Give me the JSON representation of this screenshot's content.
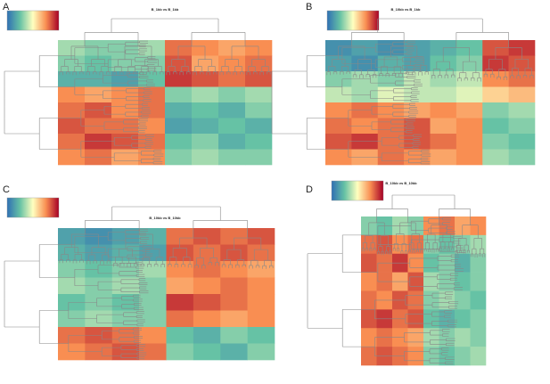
{
  "chart_data": [
    {
      "type": "heatmap",
      "panel": "A",
      "title": "B_1kb vs B_1kb",
      "values": [
        [
          0.35,
          0.3,
          0.3,
          0.35,
          0.8,
          0.75,
          0.7,
          0.75
        ],
        [
          0.3,
          0.25,
          0.3,
          0.3,
          0.85,
          0.7,
          0.75,
          0.8
        ],
        [
          0.2,
          0.2,
          0.15,
          0.25,
          0.9,
          0.85,
          0.8,
          0.85
        ],
        [
          0.75,
          0.7,
          0.75,
          0.8,
          0.3,
          0.35,
          0.3,
          0.35
        ],
        [
          0.8,
          0.85,
          0.75,
          0.8,
          0.2,
          0.25,
          0.2,
          0.3
        ],
        [
          0.85,
          0.8,
          0.8,
          0.75,
          0.15,
          0.2,
          0.25,
          0.2
        ],
        [
          0.8,
          0.9,
          0.85,
          0.8,
          0.25,
          0.3,
          0.2,
          0.25
        ],
        [
          0.75,
          0.8,
          0.7,
          0.75,
          0.3,
          0.35,
          0.3,
          0.3
        ]
      ]
    },
    {
      "type": "heatmap",
      "panel": "B",
      "title": "B_10kb vs B_1kb",
      "values": [
        [
          0.1,
          0.15,
          0.1,
          0.15,
          0.2,
          0.25,
          0.85,
          0.9
        ],
        [
          0.15,
          0.1,
          0.2,
          0.15,
          0.25,
          0.3,
          0.9,
          0.85
        ],
        [
          0.3,
          0.35,
          0.3,
          0.4,
          0.35,
          0.4,
          0.75,
          0.8
        ],
        [
          0.4,
          0.35,
          0.45,
          0.4,
          0.4,
          0.45,
          0.6,
          0.65
        ],
        [
          0.75,
          0.8,
          0.75,
          0.7,
          0.75,
          0.7,
          0.3,
          0.35
        ],
        [
          0.8,
          0.75,
          0.8,
          0.85,
          0.7,
          0.75,
          0.25,
          0.3
        ],
        [
          0.85,
          0.9,
          0.8,
          0.85,
          0.8,
          0.75,
          0.3,
          0.25
        ],
        [
          0.75,
          0.7,
          0.8,
          0.75,
          0.7,
          0.75,
          0.35,
          0.3
        ]
      ]
    },
    {
      "type": "heatmap",
      "panel": "C",
      "title": "B_10kb vs B_10kb",
      "values": [
        [
          0.15,
          0.1,
          0.15,
          0.2,
          0.8,
          0.85,
          0.8,
          0.85
        ],
        [
          0.2,
          0.15,
          0.2,
          0.15,
          0.85,
          0.8,
          0.85,
          0.8
        ],
        [
          0.3,
          0.25,
          0.3,
          0.35,
          0.75,
          0.8,
          0.75,
          0.7
        ],
        [
          0.35,
          0.3,
          0.35,
          0.3,
          0.7,
          0.75,
          0.8,
          0.75
        ],
        [
          0.25,
          0.3,
          0.25,
          0.3,
          0.9,
          0.85,
          0.8,
          0.75
        ],
        [
          0.3,
          0.35,
          0.3,
          0.3,
          0.8,
          0.75,
          0.7,
          0.75
        ],
        [
          0.8,
          0.85,
          0.8,
          0.75,
          0.25,
          0.2,
          0.3,
          0.25
        ],
        [
          0.75,
          0.8,
          0.85,
          0.8,
          0.3,
          0.25,
          0.2,
          0.3
        ]
      ]
    },
    {
      "type": "heatmap",
      "panel": "D",
      "title": "B_10kb vs B_10kb",
      "values": [
        [
          0.3,
          0.25,
          0.35,
          0.3,
          0.75,
          0.8,
          0.7,
          0.75
        ],
        [
          0.8,
          0.85,
          0.75,
          0.8,
          0.3,
          0.25,
          0.3,
          0.35
        ],
        [
          0.85,
          0.8,
          0.9,
          0.75,
          0.25,
          0.3,
          0.2,
          0.3
        ],
        [
          0.75,
          0.8,
          0.7,
          0.85,
          0.35,
          0.3,
          0.25,
          0.3
        ],
        [
          0.8,
          0.75,
          0.85,
          0.8,
          0.3,
          0.35,
          0.3,
          0.25
        ],
        [
          0.85,
          0.9,
          0.8,
          0.85,
          0.25,
          0.2,
          0.25,
          0.3
        ],
        [
          0.75,
          0.8,
          0.75,
          0.7,
          0.35,
          0.3,
          0.35,
          0.3
        ],
        [
          0.8,
          0.85,
          0.8,
          0.75,
          0.3,
          0.25,
          0.3,
          0.35
        ]
      ]
    }
  ]
}
